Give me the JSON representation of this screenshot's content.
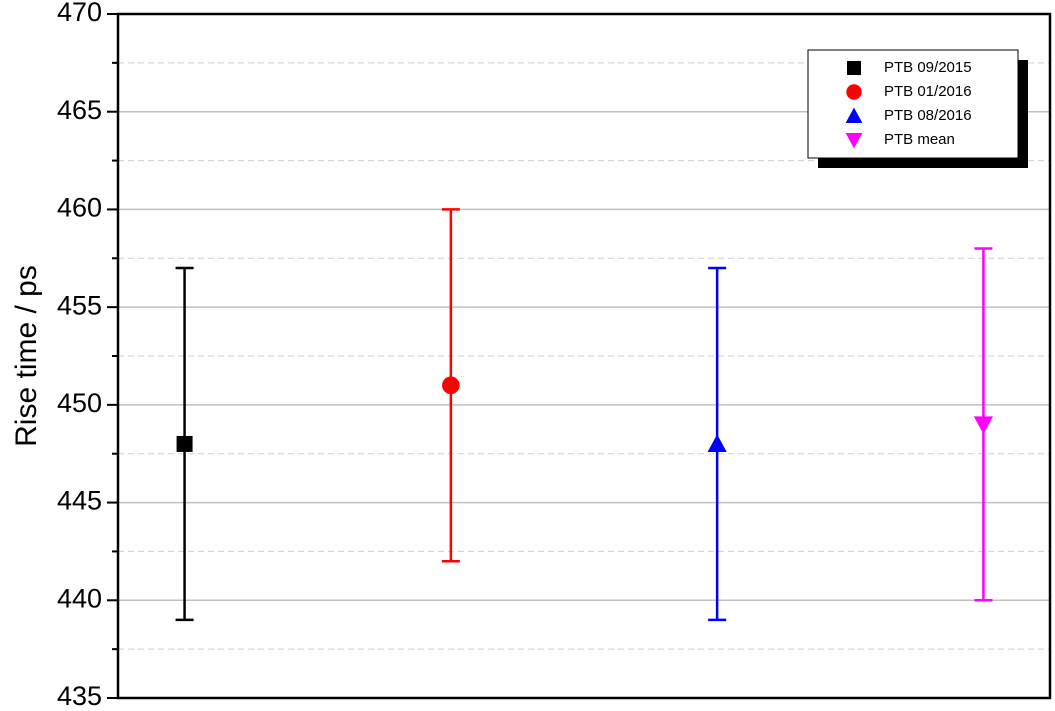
{
  "chart_data": {
    "type": "errorbar",
    "ylabel": "Rise time / ps",
    "xlim": [
      0.75,
      4.25
    ],
    "ylim": [
      435,
      470
    ],
    "yticks": [
      435,
      440,
      445,
      450,
      455,
      460,
      465,
      470
    ],
    "minor_yticks": [
      437.5,
      442.5,
      447.5,
      452.5,
      457.5,
      462.5,
      467.5
    ],
    "grid": true,
    "legend": "upper right",
    "series": [
      {
        "name": "PTB 09/2015",
        "color": "#000000",
        "marker": "square",
        "x": [
          1
        ],
        "values": [
          448
        ],
        "errors": [
          9
        ]
      },
      {
        "name": "PTB 01/2016",
        "color": "#ff0000",
        "marker": "circle",
        "x": [
          2
        ],
        "values": [
          451
        ],
        "errors": [
          9
        ]
      },
      {
        "name": "PTB 08/2016",
        "color": "#0000ff",
        "marker": "triangle-up",
        "x": [
          3
        ],
        "values": [
          448
        ],
        "errors": [
          9
        ]
      },
      {
        "name": "PTB mean",
        "color": "#ff00ff",
        "marker": "triangle-down",
        "x": [
          4
        ],
        "values": [
          449
        ],
        "errors": [
          9
        ]
      }
    ]
  }
}
